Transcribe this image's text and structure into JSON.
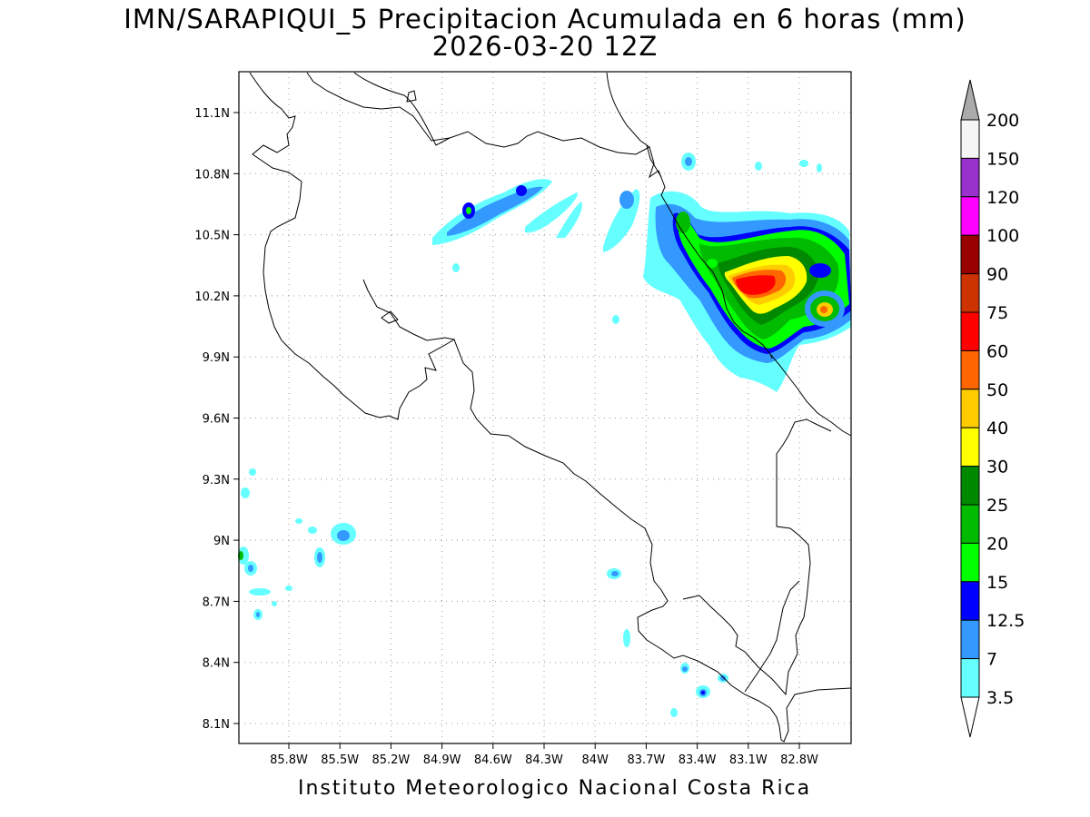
{
  "title_line1": "IMN/SARAPIQUI_5 Precipitacion Acumulada en 6 horas (mm)",
  "title_line2": "2026-03-20 12Z",
  "footer": "Instituto Meteorologico Nacional Costa Rica",
  "map": {
    "lat_labels": [
      "11.1N",
      "10.8N",
      "10.5N",
      "10.2N",
      "9.9N",
      "9.6N",
      "9.3N",
      "9N",
      "8.7N",
      "8.4N",
      "8.1N"
    ],
    "lon_labels": [
      "85.8W",
      "85.5W",
      "85.2W",
      "84.9W",
      "84.6W",
      "84.3W",
      "84W",
      "83.7W",
      "83.4W",
      "83.1W",
      "82.8W"
    ],
    "grid": true
  },
  "colorbar": {
    "levels": [
      {
        "label": "200",
        "color": "#f5f5f5"
      },
      {
        "label": "150",
        "color": "#9932cc"
      },
      {
        "label": "120",
        "color": "#ff00ff"
      },
      {
        "label": "100",
        "color": "#990000"
      },
      {
        "label": "90",
        "color": "#cc3300"
      },
      {
        "label": "75",
        "color": "#ff0000"
      },
      {
        "label": "60",
        "color": "#ff6600"
      },
      {
        "label": "50",
        "color": "#ffcc00"
      },
      {
        "label": "40",
        "color": "#ffff00"
      },
      {
        "label": "30",
        "color": "#008800"
      },
      {
        "label": "25",
        "color": "#00bb00"
      },
      {
        "label": "20",
        "color": "#00ff00"
      },
      {
        "label": "15",
        "color": "#0000ff"
      },
      {
        "label": "12.5",
        "color": "#3399ff"
      },
      {
        "label": "7",
        "color": "#66ffff"
      },
      {
        "label": "3.5",
        "color": "#ffffff"
      }
    ],
    "top_triangle_color": "#aaaaaa",
    "bottom_triangle_color": "#ffffff"
  }
}
